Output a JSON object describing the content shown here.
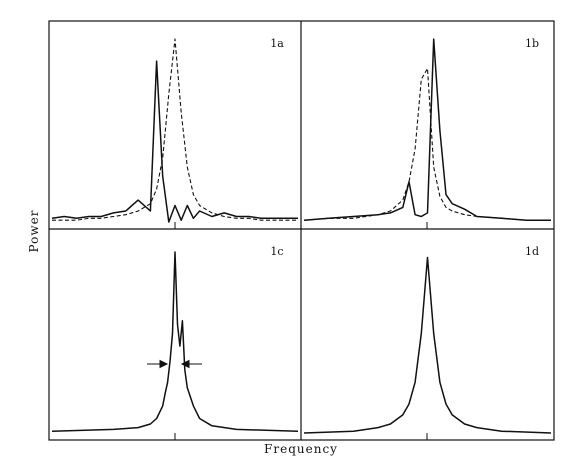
{
  "chart_data": [
    {
      "type": "line",
      "panel_label": "1a",
      "x": [
        -1.0,
        -0.9,
        -0.8,
        -0.7,
        -0.6,
        -0.5,
        -0.4,
        -0.3,
        -0.2,
        -0.15,
        -0.1,
        -0.05,
        0.0,
        0.05,
        0.1,
        0.15,
        0.2,
        0.3,
        0.4,
        0.5,
        0.6,
        0.7,
        0.8,
        0.9,
        1.0
      ],
      "series": [
        {
          "line_style": "solid",
          "values": [
            0.02,
            0.03,
            0.02,
            0.03,
            0.03,
            0.05,
            0.06,
            0.12,
            0.06,
            0.88,
            0.25,
            0.0,
            0.09,
            0.01,
            0.09,
            0.02,
            0.06,
            0.03,
            0.05,
            0.03,
            0.03,
            0.02,
            0.02,
            0.02,
            0.02
          ]
        },
        {
          "line_style": "dashed",
          "values": [
            0.01,
            0.01,
            0.01,
            0.02,
            0.02,
            0.03,
            0.04,
            0.06,
            0.1,
            0.18,
            0.35,
            0.7,
            1.0,
            0.6,
            0.3,
            0.15,
            0.09,
            0.05,
            0.03,
            0.02,
            0.02,
            0.01,
            0.01,
            0.01,
            0.01
          ]
        }
      ],
      "xlim": [
        -1,
        1
      ],
      "ylim": [
        0,
        1.05
      ]
    },
    {
      "type": "line",
      "panel_label": "1b",
      "x": [
        -1.0,
        -0.8,
        -0.6,
        -0.4,
        -0.3,
        -0.2,
        -0.15,
        -0.1,
        -0.05,
        0.0,
        0.05,
        0.1,
        0.15,
        0.2,
        0.3,
        0.4,
        0.6,
        0.8,
        1.0
      ],
      "series": [
        {
          "line_style": "solid",
          "values": [
            0.01,
            0.02,
            0.03,
            0.04,
            0.05,
            0.08,
            0.22,
            0.04,
            0.03,
            0.05,
            1.0,
            0.5,
            0.15,
            0.1,
            0.07,
            0.03,
            0.02,
            0.01,
            0.01
          ]
        },
        {
          "line_style": "dashed",
          "values": [
            0.01,
            0.02,
            0.02,
            0.04,
            0.06,
            0.12,
            0.22,
            0.4,
            0.78,
            0.84,
            0.3,
            0.14,
            0.08,
            0.06,
            0.04,
            0.03,
            0.02,
            0.01,
            0.01
          ]
        }
      ],
      "xlim": [
        -1,
        1
      ],
      "ylim": [
        0,
        1.05
      ]
    },
    {
      "type": "line",
      "panel_label": "1c",
      "x": [
        -1.0,
        -0.5,
        -0.3,
        -0.2,
        -0.15,
        -0.1,
        -0.08,
        -0.06,
        -0.04,
        -0.02,
        0.0,
        0.02,
        0.04,
        0.06,
        0.08,
        0.1,
        0.15,
        0.2,
        0.3,
        0.5,
        1.0
      ],
      "series": [
        {
          "line_style": "solid",
          "values": [
            0.01,
            0.02,
            0.03,
            0.05,
            0.08,
            0.15,
            0.22,
            0.28,
            0.4,
            0.55,
            1.0,
            0.6,
            0.48,
            0.62,
            0.35,
            0.25,
            0.15,
            0.08,
            0.04,
            0.02,
            0.01
          ]
        }
      ],
      "annotation": "arrows marking linewidth near peak",
      "xlim": [
        -1,
        1
      ],
      "ylim": [
        0,
        1.05
      ]
    },
    {
      "type": "line",
      "panel_label": "1d",
      "x": [
        -1.0,
        -0.6,
        -0.4,
        -0.3,
        -0.2,
        -0.15,
        -0.1,
        -0.05,
        0.0,
        0.05,
        0.1,
        0.15,
        0.2,
        0.3,
        0.4,
        0.6,
        1.0
      ],
      "series": [
        {
          "line_style": "solid",
          "values": [
            0.0,
            0.01,
            0.03,
            0.05,
            0.1,
            0.16,
            0.28,
            0.55,
            0.97,
            0.55,
            0.28,
            0.16,
            0.1,
            0.05,
            0.03,
            0.01,
            0.0
          ]
        }
      ],
      "xlim": [
        -1,
        1
      ],
      "ylim": [
        0,
        1.05
      ]
    }
  ],
  "xlabel": "Frequency",
  "ylabel": "Power"
}
